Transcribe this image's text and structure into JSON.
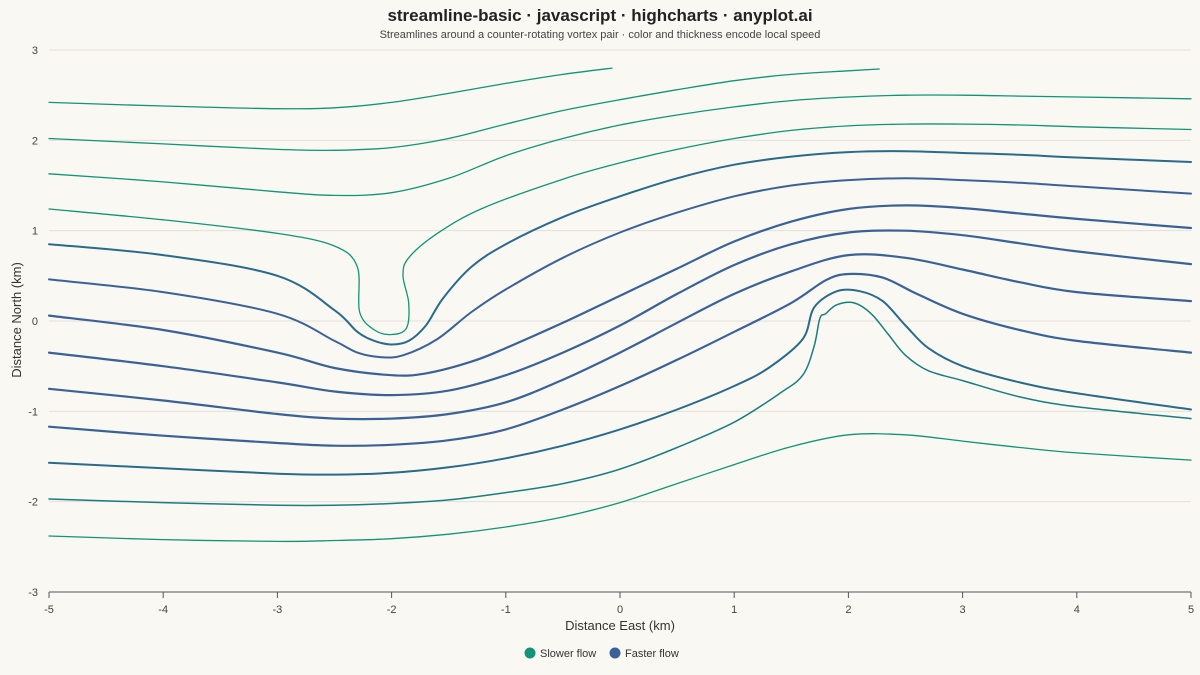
{
  "chart_data": {
    "type": "line",
    "title": "streamline-basic · javascript · highcharts · anyplot.ai",
    "subtitle": "Streamlines around a counter-rotating vortex pair · color and thickness encode local speed",
    "xlabel": "Distance East (km)",
    "ylabel": "Distance North (km)",
    "xlim": [
      -5,
      5
    ],
    "ylim": [
      -3,
      3
    ],
    "xticks": [
      "-5",
      "-4",
      "-3",
      "-2",
      "-1",
      "0",
      "1",
      "2",
      "3",
      "4",
      "5"
    ],
    "yticks": [
      "3",
      "2",
      "1",
      "0",
      "-1",
      "-2",
      "-3"
    ],
    "grid": true,
    "legend": {
      "position": "bottom-center",
      "entries": [
        {
          "name": "Slower flow",
          "color": "#119478"
        },
        {
          "name": "Faster flow",
          "color": "#3b6296"
        }
      ]
    },
    "series": [
      {
        "speed": "slow",
        "color": "#119478",
        "width": 1.3,
        "points": [
          [
            -5,
            2.42
          ],
          [
            -4,
            2.38
          ],
          [
            -3,
            2.35
          ],
          [
            -2.5,
            2.36
          ],
          [
            -2,
            2.42
          ],
          [
            -1.5,
            2.52
          ],
          [
            -1,
            2.63
          ],
          [
            -0.5,
            2.73
          ],
          [
            -0.07,
            2.8
          ]
        ]
      },
      {
        "speed": "slow",
        "color": "#119478",
        "width": 1.3,
        "points": [
          [
            -5,
            2.02
          ],
          [
            -4,
            1.96
          ],
          [
            -3,
            1.9
          ],
          [
            -2.5,
            1.89
          ],
          [
            -2,
            1.92
          ],
          [
            -1.5,
            2.02
          ],
          [
            -1,
            2.18
          ],
          [
            -0.5,
            2.33
          ],
          [
            0,
            2.45
          ],
          [
            0.5,
            2.56
          ],
          [
            1,
            2.66
          ],
          [
            1.5,
            2.73
          ],
          [
            2,
            2.77
          ],
          [
            2.27,
            2.79
          ]
        ]
      },
      {
        "speed": "slow",
        "color": "#119478",
        "width": 1.3,
        "points": [
          [
            -5,
            1.63
          ],
          [
            -4,
            1.54
          ],
          [
            -3,
            1.43
          ],
          [
            -2.5,
            1.39
          ],
          [
            -2,
            1.42
          ],
          [
            -1.5,
            1.58
          ],
          [
            -1,
            1.83
          ],
          [
            -0.5,
            2.02
          ],
          [
            0,
            2.17
          ],
          [
            0.5,
            2.28
          ],
          [
            1,
            2.37
          ],
          [
            1.5,
            2.44
          ],
          [
            2,
            2.48
          ],
          [
            2.5,
            2.5
          ],
          [
            3,
            2.5
          ],
          [
            3.5,
            2.49
          ],
          [
            4,
            2.48
          ],
          [
            5,
            2.46
          ]
        ]
      },
      {
        "speed": "slow",
        "color": "#119478",
        "width": 1.3,
        "points": [
          [
            -5,
            1.24
          ],
          [
            -4,
            1.12
          ],
          [
            -3,
            0.97
          ],
          [
            -2.5,
            0.83
          ],
          [
            -2.3,
            0.6
          ],
          [
            -2.28,
            0.1
          ],
          [
            -2.15,
            -0.1
          ],
          [
            -2,
            -0.15
          ],
          [
            -1.87,
            -0.08
          ],
          [
            -1.85,
            0.2
          ],
          [
            -1.9,
            0.5
          ],
          [
            -1.85,
            0.7
          ],
          [
            -1.6,
            0.97
          ],
          [
            -1.2,
            1.25
          ],
          [
            -0.5,
            1.57
          ],
          [
            0,
            1.75
          ],
          [
            0.5,
            1.9
          ],
          [
            1,
            2.02
          ],
          [
            1.5,
            2.11
          ],
          [
            2,
            2.16
          ],
          [
            2.5,
            2.18
          ],
          [
            3,
            2.18
          ],
          [
            3.5,
            2.17
          ],
          [
            4,
            2.15
          ],
          [
            5,
            2.12
          ]
        ]
      },
      {
        "speed": "fast",
        "color": "#2a6a8a",
        "width": 2.0,
        "points": [
          [
            -5,
            0.85
          ],
          [
            -4,
            0.73
          ],
          [
            -3,
            0.5
          ],
          [
            -2.5,
            0.12
          ],
          [
            -2.3,
            -0.12
          ],
          [
            -2.15,
            -0.22
          ],
          [
            -2,
            -0.26
          ],
          [
            -1.85,
            -0.22
          ],
          [
            -1.7,
            -0.05
          ],
          [
            -1.55,
            0.25
          ],
          [
            -1.3,
            0.6
          ],
          [
            -1,
            0.85
          ],
          [
            -0.5,
            1.15
          ],
          [
            0,
            1.38
          ],
          [
            0.5,
            1.58
          ],
          [
            1,
            1.73
          ],
          [
            1.5,
            1.82
          ],
          [
            2,
            1.87
          ],
          [
            2.5,
            1.88
          ],
          [
            3,
            1.86
          ],
          [
            3.5,
            1.84
          ],
          [
            4,
            1.81
          ],
          [
            5,
            1.76
          ]
        ]
      },
      {
        "speed": "fast",
        "color": "#3b6296",
        "width": 2.0,
        "points": [
          [
            -5,
            0.46
          ],
          [
            -4,
            0.32
          ],
          [
            -3,
            0.08
          ],
          [
            -2.5,
            -0.22
          ],
          [
            -2.3,
            -0.35
          ],
          [
            -2.1,
            -0.4
          ],
          [
            -1.9,
            -0.38
          ],
          [
            -1.6,
            -0.2
          ],
          [
            -1.3,
            0.1
          ],
          [
            -1,
            0.35
          ],
          [
            -0.5,
            0.7
          ],
          [
            0,
            0.98
          ],
          [
            0.5,
            1.2
          ],
          [
            1,
            1.38
          ],
          [
            1.5,
            1.5
          ],
          [
            2,
            1.56
          ],
          [
            2.5,
            1.58
          ],
          [
            3,
            1.56
          ],
          [
            3.5,
            1.53
          ],
          [
            4,
            1.49
          ],
          [
            5,
            1.41
          ]
        ]
      },
      {
        "speed": "fast",
        "color": "#3b6296",
        "width": 2.2,
        "points": [
          [
            -5,
            0.06
          ],
          [
            -4,
            -0.1
          ],
          [
            -3,
            -0.35
          ],
          [
            -2.5,
            -0.52
          ],
          [
            -2,
            -0.6
          ],
          [
            -1.7,
            -0.58
          ],
          [
            -1.3,
            -0.45
          ],
          [
            -1,
            -0.3
          ],
          [
            -0.5,
            -0.02
          ],
          [
            0,
            0.28
          ],
          [
            0.5,
            0.58
          ],
          [
            1,
            0.88
          ],
          [
            1.5,
            1.1
          ],
          [
            2,
            1.24
          ],
          [
            2.5,
            1.28
          ],
          [
            3,
            1.25
          ],
          [
            3.5,
            1.19
          ],
          [
            4,
            1.13
          ],
          [
            5,
            1.03
          ]
        ]
      },
      {
        "speed": "fast",
        "color": "#3b6296",
        "width": 2.2,
        "points": [
          [
            -5,
            -0.35
          ],
          [
            -4,
            -0.5
          ],
          [
            -3,
            -0.68
          ],
          [
            -2.5,
            -0.78
          ],
          [
            -2,
            -0.82
          ],
          [
            -1.5,
            -0.77
          ],
          [
            -1,
            -0.6
          ],
          [
            -0.5,
            -0.35
          ],
          [
            0,
            -0.05
          ],
          [
            0.5,
            0.3
          ],
          [
            1,
            0.62
          ],
          [
            1.5,
            0.85
          ],
          [
            2,
            0.98
          ],
          [
            2.5,
            1.0
          ],
          [
            3,
            0.95
          ],
          [
            3.5,
            0.86
          ],
          [
            4,
            0.77
          ],
          [
            5,
            0.63
          ]
        ]
      },
      {
        "speed": "fast",
        "color": "#3b6296",
        "width": 2.2,
        "points": [
          [
            -5,
            -0.75
          ],
          [
            -4,
            -0.88
          ],
          [
            -3,
            -1.03
          ],
          [
            -2.5,
            -1.08
          ],
          [
            -2,
            -1.08
          ],
          [
            -1.5,
            -1.03
          ],
          [
            -1,
            -0.9
          ],
          [
            -0.5,
            -0.65
          ],
          [
            0,
            -0.35
          ],
          [
            0.5,
            -0.02
          ],
          [
            1,
            0.3
          ],
          [
            1.5,
            0.55
          ],
          [
            2,
            0.73
          ],
          [
            2.5,
            0.7
          ],
          [
            3,
            0.57
          ],
          [
            3.5,
            0.43
          ],
          [
            4,
            0.32
          ],
          [
            5,
            0.22
          ]
        ]
      },
      {
        "speed": "fast",
        "color": "#3b6296",
        "width": 2.2,
        "points": [
          [
            -5,
            -1.17
          ],
          [
            -4,
            -1.27
          ],
          [
            -3,
            -1.35
          ],
          [
            -2.5,
            -1.38
          ],
          [
            -2,
            -1.37
          ],
          [
            -1.5,
            -1.32
          ],
          [
            -1,
            -1.2
          ],
          [
            -0.5,
            -0.98
          ],
          [
            0,
            -0.72
          ],
          [
            0.5,
            -0.43
          ],
          [
            1,
            -0.12
          ],
          [
            1.5,
            0.2
          ],
          [
            1.8,
            0.45
          ],
          [
            2,
            0.52
          ],
          [
            2.3,
            0.48
          ],
          [
            2.6,
            0.3
          ],
          [
            3,
            0.08
          ],
          [
            3.5,
            -0.1
          ],
          [
            4,
            -0.22
          ],
          [
            5,
            -0.35
          ]
        ]
      },
      {
        "speed": "fast",
        "color": "#2a6a8a",
        "width": 2.0,
        "points": [
          [
            -5,
            -1.57
          ],
          [
            -4,
            -1.63
          ],
          [
            -3,
            -1.69
          ],
          [
            -2.5,
            -1.7
          ],
          [
            -2,
            -1.68
          ],
          [
            -1.5,
            -1.62
          ],
          [
            -1,
            -1.52
          ],
          [
            -0.5,
            -1.38
          ],
          [
            0,
            -1.2
          ],
          [
            0.5,
            -0.98
          ],
          [
            1,
            -0.72
          ],
          [
            1.3,
            -0.52
          ],
          [
            1.6,
            -0.2
          ],
          [
            1.7,
            0.15
          ],
          [
            1.9,
            0.33
          ],
          [
            2.1,
            0.33
          ],
          [
            2.3,
            0.22
          ],
          [
            2.5,
            -0.05
          ],
          [
            2.7,
            -0.3
          ],
          [
            3,
            -0.5
          ],
          [
            3.5,
            -0.68
          ],
          [
            4,
            -0.8
          ],
          [
            5,
            -0.98
          ]
        ]
      },
      {
        "speed": "slow",
        "color": "#1a7d80",
        "width": 1.5,
        "points": [
          [
            -5,
            -1.97
          ],
          [
            -4,
            -2.01
          ],
          [
            -3,
            -2.04
          ],
          [
            -2.5,
            -2.04
          ],
          [
            -2,
            -2.02
          ],
          [
            -1.5,
            -1.98
          ],
          [
            -1,
            -1.9
          ],
          [
            -0.5,
            -1.8
          ],
          [
            0,
            -1.64
          ],
          [
            0.5,
            -1.4
          ],
          [
            1,
            -1.12
          ],
          [
            1.4,
            -0.8
          ],
          [
            1.6,
            -0.6
          ],
          [
            1.7,
            -0.28
          ],
          [
            1.75,
            0.03
          ],
          [
            1.8,
            0.08
          ],
          [
            1.9,
            0.18
          ],
          [
            2.05,
            0.2
          ],
          [
            2.2,
            0.08
          ],
          [
            2.35,
            -0.15
          ],
          [
            2.5,
            -0.38
          ],
          [
            2.7,
            -0.55
          ],
          [
            3,
            -0.66
          ],
          [
            3.5,
            -0.84
          ],
          [
            4,
            -0.95
          ],
          [
            5,
            -1.08
          ]
        ]
      },
      {
        "speed": "slow",
        "color": "#119478",
        "width": 1.3,
        "points": [
          [
            -5,
            -2.38
          ],
          [
            -4,
            -2.42
          ],
          [
            -3,
            -2.44
          ],
          [
            -2.5,
            -2.43
          ],
          [
            -2,
            -2.41
          ],
          [
            -1.5,
            -2.36
          ],
          [
            -1,
            -2.28
          ],
          [
            -0.5,
            -2.17
          ],
          [
            0,
            -2.01
          ],
          [
            0.5,
            -1.8
          ],
          [
            1,
            -1.59
          ],
          [
            1.5,
            -1.39
          ],
          [
            2,
            -1.26
          ],
          [
            2.5,
            -1.26
          ],
          [
            3,
            -1.33
          ],
          [
            3.5,
            -1.4
          ],
          [
            4,
            -1.46
          ],
          [
            5,
            -1.54
          ]
        ]
      }
    ]
  }
}
